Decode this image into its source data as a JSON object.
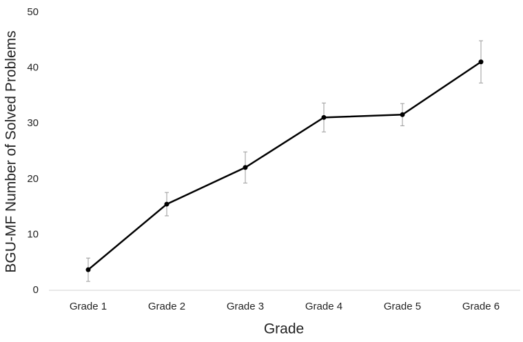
{
  "chart_data": {
    "type": "line",
    "x_label": "Grade",
    "y_label": "BGU-MF Number of Solved  Problems",
    "categories": [
      "Grade 1",
      "Grade 2",
      "Grade 3",
      "Grade 4",
      "Grade 5",
      "Grade 6"
    ],
    "values": [
      3.7,
      15.5,
      22.1,
      31.1,
      31.6,
      41.1
    ],
    "errors": [
      2.1,
      2.1,
      2.8,
      2.6,
      2.0,
      3.8
    ],
    "color": "#000000",
    "error_color": "#999999",
    "ylim": [
      0,
      50
    ],
    "yticks": [
      0,
      10,
      20,
      30,
      40,
      50
    ],
    "grid": false
  }
}
